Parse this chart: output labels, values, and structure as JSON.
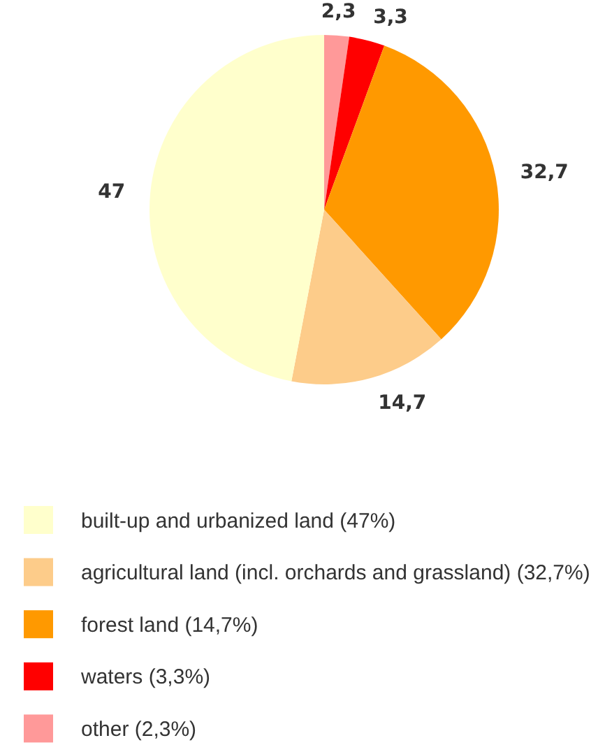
{
  "chart_data": {
    "type": "pie",
    "categories": [
      "built-up and urbanized land (47%)",
      "agricultural land (incl. orchards and grassland) (32,7%)",
      "forest land (14,7%)",
      "waters (3,3%)",
      "other (2,3%)"
    ],
    "values": [
      47,
      14.7,
      32.7,
      3.3,
      2.3
    ],
    "value_labels": [
      "47",
      "14,7",
      "32,7",
      "3,3",
      "2,3"
    ],
    "colors": [
      "#ffffcc",
      "#fdcc8a",
      "#ff9900",
      "#ff0000",
      "#ff9999"
    ],
    "legend": "bottom"
  }
}
